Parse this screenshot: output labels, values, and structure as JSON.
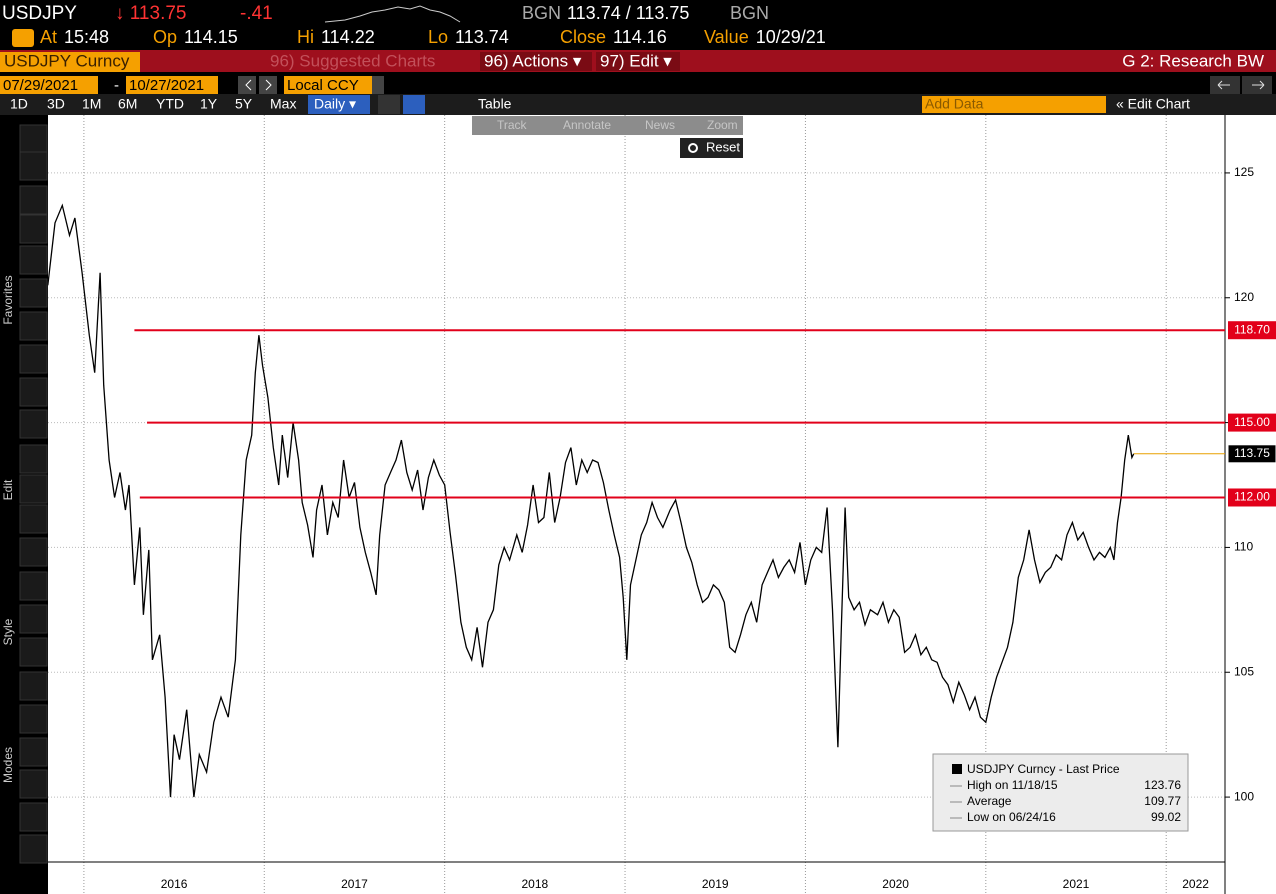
{
  "header": {
    "symbol": "USDJPY",
    "price": "↓ 113.75",
    "change": "-.41",
    "source_left": "BGN",
    "bid_ask": "113.74 / 113.75",
    "source_right": "BGN",
    "fields": [
      {
        "label": "At",
        "value": "15:48"
      },
      {
        "label": "Op",
        "value": "114.15"
      },
      {
        "label": "Hi",
        "value": "114.22"
      },
      {
        "label": "Lo",
        "value": "113.74"
      },
      {
        "label": "Close",
        "value": "114.16"
      },
      {
        "label": "Value",
        "value": "10/29/21"
      }
    ]
  },
  "menu": {
    "ticker": "USDJPY Curncy",
    "suggested": "96) Suggested Charts",
    "actions": "96) Actions ▾",
    "edit": "97) Edit ▾",
    "research": "G 2: Research BW"
  },
  "range": {
    "start": "07/29/2021",
    "separator": "-",
    "end": "10/27/2021",
    "currency": "Local CCY"
  },
  "periods": {
    "buttons": [
      "1D",
      "3D",
      "1M",
      "6M",
      "YTD",
      "1Y",
      "5Y",
      "Max"
    ],
    "frequency": "Daily ▾",
    "table": "Table",
    "add_data": "Add Data",
    "edit_chart": "« Edit Chart"
  },
  "tools": {
    "items": [
      "Track",
      "Annotate",
      "News",
      "Zoom"
    ],
    "reset": "Reset"
  },
  "sidebar": {
    "favorites": "Favorites",
    "edit": "Edit",
    "style": "Style",
    "modes": "Modes"
  },
  "chart_data": {
    "type": "line",
    "x": [
      2015.8,
      2015.84,
      2015.88,
      2015.92,
      2015.95,
      2015.99,
      2016.03,
      2016.06,
      2016.09,
      2016.11,
      2016.14,
      2016.17,
      2016.2,
      2016.23,
      2016.25,
      2016.28,
      2016.31,
      2016.33,
      2016.36,
      2016.38,
      2016.42,
      2016.45,
      2016.48,
      2016.5,
      2016.53,
      2016.57,
      2016.61,
      2016.64,
      2016.68,
      2016.72,
      2016.76,
      2016.8,
      2016.84,
      2016.87,
      2016.9,
      2016.93,
      2016.95,
      2016.97,
      2016.99,
      2017.02,
      2017.05,
      2017.08,
      2017.1,
      2017.13,
      2017.16,
      2017.19,
      2017.21,
      2017.24,
      2017.27,
      2017.29,
      2017.32,
      2017.35,
      2017.38,
      2017.41,
      2017.44,
      2017.47,
      2017.5,
      2017.53,
      2017.56,
      2017.59,
      2017.62,
      2017.64,
      2017.67,
      2017.7,
      2017.73,
      2017.76,
      2017.79,
      2017.82,
      2017.85,
      2017.88,
      2017.91,
      2017.94,
      2017.97,
      2018.0,
      2018.03,
      2018.06,
      2018.09,
      2018.12,
      2018.15,
      2018.18,
      2018.21,
      2018.24,
      2018.27,
      2018.3,
      2018.33,
      2018.36,
      2018.4,
      2018.43,
      2018.46,
      2018.49,
      2018.52,
      2018.55,
      2018.58,
      2018.61,
      2018.64,
      2018.67,
      2018.7,
      2018.73,
      2018.76,
      2018.79,
      2018.82,
      2018.85,
      2018.88,
      2018.91,
      2018.94,
      2018.97,
      2018.99,
      2019.01,
      2019.03,
      2019.06,
      2019.09,
      2019.12,
      2019.15,
      2019.18,
      2019.21,
      2019.25,
      2019.28,
      2019.31,
      2019.34,
      2019.37,
      2019.4,
      2019.43,
      2019.46,
      2019.49,
      2019.52,
      2019.55,
      2019.58,
      2019.61,
      2019.64,
      2019.67,
      2019.7,
      2019.73,
      2019.76,
      2019.79,
      2019.82,
      2019.85,
      2019.88,
      2019.91,
      2019.94,
      2019.97,
      2020.0,
      2020.03,
      2020.06,
      2020.09,
      2020.12,
      2020.15,
      2020.18,
      2020.2,
      2020.22,
      2020.24,
      2020.27,
      2020.3,
      2020.33,
      2020.36,
      2020.4,
      2020.43,
      2020.46,
      2020.49,
      2020.52,
      2020.55,
      2020.58,
      2020.61,
      2020.64,
      2020.67,
      2020.7,
      2020.73,
      2020.76,
      2020.79,
      2020.82,
      2020.85,
      2020.88,
      2020.91,
      2020.94,
      2020.97,
      2021.0,
      2021.03,
      2021.06,
      2021.09,
      2021.12,
      2021.15,
      2021.18,
      2021.21,
      2021.24,
      2021.27,
      2021.3,
      2021.33,
      2021.36,
      2021.39,
      2021.42,
      2021.45,
      2021.48,
      2021.51,
      2021.54,
      2021.57,
      2021.6,
      2021.63,
      2021.66,
      2021.69,
      2021.71,
      2021.73,
      2021.75,
      2021.77,
      2021.79,
      2021.81,
      2021.82
    ],
    "series": [
      {
        "name": "USDJPY Curncy - Last Price",
        "color": "#000000",
        "values": [
          120.5,
          123.0,
          123.7,
          122.5,
          123.2,
          121.0,
          118.5,
          117.0,
          121.0,
          116.5,
          113.5,
          112.0,
          113.0,
          111.5,
          112.5,
          108.5,
          110.8,
          107.3,
          109.9,
          105.5,
          106.5,
          104.0,
          100.0,
          102.5,
          101.5,
          103.5,
          100.0,
          101.7,
          101.0,
          103.0,
          104.0,
          103.2,
          105.5,
          110.5,
          113.5,
          114.5,
          117.0,
          118.5,
          117.3,
          116.0,
          114.0,
          112.5,
          114.5,
          112.8,
          115.0,
          113.5,
          111.8,
          110.9,
          109.6,
          111.5,
          112.5,
          110.5,
          111.8,
          111.2,
          113.5,
          112.0,
          112.6,
          110.8,
          109.8,
          109.0,
          108.1,
          110.5,
          112.5,
          113.0,
          113.5,
          114.3,
          113.0,
          112.3,
          113.1,
          111.5,
          112.8,
          113.5,
          112.9,
          112.5,
          110.6,
          108.9,
          107.0,
          106.0,
          105.5,
          106.8,
          105.2,
          107.0,
          107.5,
          109.3,
          110.0,
          109.5,
          110.5,
          109.8,
          110.9,
          112.5,
          111.0,
          111.2,
          113.0,
          111.0,
          112.0,
          113.4,
          114.0,
          112.5,
          113.5,
          113.0,
          113.5,
          113.4,
          112.6,
          111.5,
          110.5,
          109.6,
          108.0,
          105.5,
          108.5,
          109.5,
          110.5,
          111.0,
          111.8,
          111.2,
          110.8,
          111.5,
          111.9,
          111.0,
          110.0,
          109.4,
          108.5,
          107.8,
          108.0,
          108.5,
          108.3,
          107.8,
          106.0,
          105.8,
          106.5,
          107.3,
          107.8,
          107.0,
          108.5,
          109.0,
          109.5,
          108.8,
          109.2,
          109.5,
          109.0,
          110.2,
          108.5,
          109.5,
          110.0,
          109.8,
          111.6,
          107.5,
          102.0,
          107.0,
          111.6,
          108.0,
          107.5,
          107.8,
          106.9,
          107.5,
          107.3,
          107.8,
          107.0,
          107.5,
          107.2,
          105.8,
          106.0,
          106.5,
          105.7,
          106.0,
          105.5,
          105.4,
          104.8,
          104.5,
          103.8,
          104.6,
          104.1,
          103.5,
          104.0,
          103.2,
          103.0,
          104.0,
          104.8,
          105.4,
          106.0,
          107.0,
          108.8,
          109.5,
          110.7,
          109.5,
          108.6,
          109.0,
          109.2,
          109.7,
          109.5,
          110.5,
          111.0,
          110.3,
          110.6,
          110.0,
          109.5,
          109.8,
          109.6,
          110.0,
          109.5,
          111.0,
          112.0,
          113.5,
          114.5,
          113.6,
          113.75
        ]
      }
    ],
    "xlim": [
      2015.801,
      2022.326
    ],
    "xticks": [
      2016,
      2017,
      2018,
      2019,
      2020,
      2021,
      2022
    ],
    "ylim": [
      97.4,
      127.32
    ],
    "yticks": [
      100,
      105,
      110,
      115,
      120,
      125
    ],
    "grid": true,
    "hlines": [
      {
        "value": 118.7,
        "label": "118.70",
        "x_from": 2016.28,
        "color": "#e2001a"
      },
      {
        "value": 115,
        "label": "115.00",
        "x_from": 2016.35,
        "color": "#e2001a"
      },
      {
        "value": 112,
        "label": "112.00",
        "x_from": 2016.31,
        "color": "#e2001a"
      }
    ],
    "last_price": 113.75,
    "last_color": "#e8a000",
    "legend": {
      "high_label": "High on 11/18/15",
      "high": 123.76,
      "average_label": "Average",
      "average": 109.77,
      "low_label": "Low on 06/24/16",
      "low": 99.02
    }
  }
}
